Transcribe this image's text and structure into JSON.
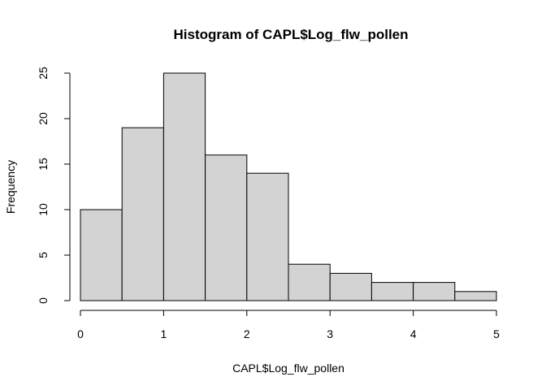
{
  "chart_data": {
    "type": "bar",
    "title": "Histogram of CAPL$Log_flw_pollen",
    "xlabel": "CAPL$Log_flw_pollen",
    "ylabel": "Frequency",
    "bins": [
      {
        "start": 0.0,
        "end": 0.5,
        "count": 10
      },
      {
        "start": 0.5,
        "end": 1.0,
        "count": 19
      },
      {
        "start": 1.0,
        "end": 1.5,
        "count": 25
      },
      {
        "start": 1.5,
        "end": 2.0,
        "count": 16
      },
      {
        "start": 2.0,
        "end": 2.5,
        "count": 14
      },
      {
        "start": 2.5,
        "end": 3.0,
        "count": 4
      },
      {
        "start": 3.0,
        "end": 3.5,
        "count": 3
      },
      {
        "start": 3.5,
        "end": 4.0,
        "count": 2
      },
      {
        "start": 4.0,
        "end": 4.5,
        "count": 2
      },
      {
        "start": 4.5,
        "end": 5.0,
        "count": 1
      }
    ],
    "xlim": [
      0,
      5
    ],
    "ylim": [
      0,
      25
    ],
    "x_ticks": [
      "0",
      "1",
      "2",
      "3",
      "4",
      "5"
    ],
    "y_ticks": [
      "0",
      "5",
      "10",
      "15",
      "20",
      "25"
    ],
    "grid": false,
    "colors": {
      "bar_fill": "#d3d3d3",
      "bar_stroke": "#000000"
    }
  }
}
